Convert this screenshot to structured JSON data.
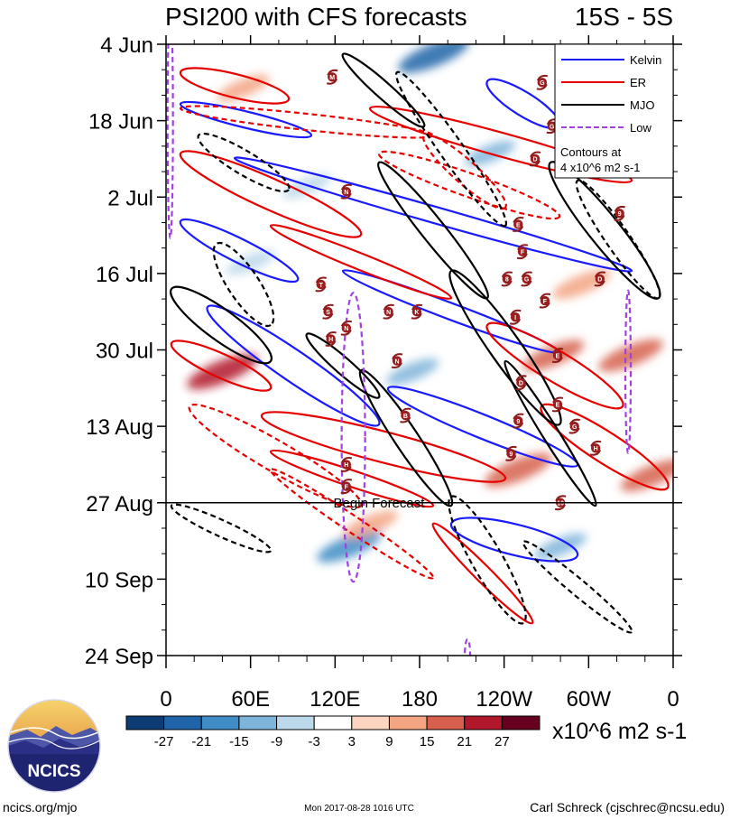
{
  "chart_data": {
    "type": "heatmap",
    "title": "PSI200 with CFS forecasts",
    "region": "15S - 5S",
    "x_ticks": [
      {
        "label": "0",
        "lon": 0
      },
      {
        "label": "60E",
        "lon": 60
      },
      {
        "label": "120E",
        "lon": 120
      },
      {
        "label": "180",
        "lon": 180
      },
      {
        "label": "120W",
        "lon": 240
      },
      {
        "label": "60W",
        "lon": 300
      },
      {
        "label": "0",
        "lon": 360
      }
    ],
    "y_ticks": [
      {
        "label": "4 Jun",
        "day": 0
      },
      {
        "label": "18 Jun",
        "day": 14
      },
      {
        "label": "2 Jul",
        "day": 28
      },
      {
        "label": "16 Jul",
        "day": 42
      },
      {
        "label": "30 Jul",
        "day": 56
      },
      {
        "label": "13 Aug",
        "day": 70
      },
      {
        "label": "27 Aug",
        "day": 84
      },
      {
        "label": "10 Sep",
        "day": 98
      },
      {
        "label": "24 Sep",
        "day": 112
      }
    ],
    "x_range": [
      0,
      360
    ],
    "y_range_days": [
      0,
      112
    ],
    "forecast_start_day": 84,
    "forecast_label": "Begin Forecast",
    "legend": {
      "position": "top-right",
      "entries": [
        {
          "name": "Kelvin",
          "color": "#1a1aff"
        },
        {
          "name": "ER",
          "color": "#e60000"
        },
        {
          "name": "MJO",
          "color": "#000000"
        },
        {
          "name": "Low",
          "color": "#a040e0"
        }
      ],
      "note_lines": [
        "Contours at",
        "4 x10^6 m2 s-1"
      ]
    },
    "colorbar": {
      "labels": [
        "-27",
        "-21",
        "-15",
        "-9",
        "-3",
        "3",
        "9",
        "15",
        "21",
        "27"
      ],
      "colors": [
        "#0d3b74",
        "#1f64a8",
        "#3f8cc6",
        "#7fb4da",
        "#bcd8eb",
        "#ffffff",
        "#fcd5c0",
        "#f3a582",
        "#d6604d",
        "#b2182b",
        "#67001f"
      ],
      "units": "x10^6 m2 s-1"
    },
    "anomalies": [
      {
        "lon": 40,
        "day": 60,
        "value": 22
      },
      {
        "lon": 250,
        "day": 78,
        "value": 20
      },
      {
        "lon": 330,
        "day": 57,
        "value": 18
      },
      {
        "lon": 275,
        "day": 57,
        "value": 16
      },
      {
        "lon": 190,
        "day": 2,
        "value": -22
      },
      {
        "lon": 130,
        "day": 92,
        "value": -18
      },
      {
        "lon": 345,
        "day": 79,
        "value": 17
      },
      {
        "lon": 145,
        "day": 88,
        "value": 12
      },
      {
        "lon": 55,
        "day": 8,
        "value": 10
      },
      {
        "lon": 295,
        "day": 44,
        "value": 14
      },
      {
        "lon": 175,
        "day": 60,
        "value": -10
      },
      {
        "lon": 230,
        "day": 20,
        "value": -9
      },
      {
        "lon": 60,
        "day": 40,
        "value": -8
      },
      {
        "lon": 280,
        "day": 92,
        "value": -10
      },
      {
        "lon": 100,
        "day": 26,
        "value": -8
      }
    ],
    "cyclones": [
      {
        "label": "M",
        "lon": 118,
        "day": 6
      },
      {
        "label": "N",
        "lon": 128,
        "day": 27
      },
      {
        "label": "T",
        "lon": 110,
        "day": 44
      },
      {
        "label": "S",
        "lon": 115,
        "day": 49
      },
      {
        "label": "N",
        "lon": 128,
        "day": 52
      },
      {
        "label": "H",
        "lon": 117,
        "day": 54
      },
      {
        "label": "N",
        "lon": 158,
        "day": 49
      },
      {
        "label": "K",
        "lon": 178,
        "day": 49
      },
      {
        "label": "N",
        "lon": 164,
        "day": 58
      },
      {
        "label": "B",
        "lon": 170,
        "day": 68
      },
      {
        "label": "H",
        "lon": 128,
        "day": 77
      },
      {
        "label": "F",
        "lon": 128,
        "day": 81
      },
      {
        "label": "G",
        "lon": 267,
        "day": 7
      },
      {
        "label": "G",
        "lon": 274,
        "day": 15
      },
      {
        "label": "D",
        "lon": 262,
        "day": 21
      },
      {
        "label": "9",
        "lon": 322,
        "day": 31
      },
      {
        "label": "E",
        "lon": 250,
        "day": 33
      },
      {
        "label": "F",
        "lon": 253,
        "day": 38
      },
      {
        "label": "8",
        "lon": 242,
        "day": 43
      },
      {
        "label": "G",
        "lon": 256,
        "day": 43
      },
      {
        "label": "F",
        "lon": 269,
        "day": 47
      },
      {
        "label": "D",
        "lon": 308,
        "day": 43
      },
      {
        "label": "I",
        "lon": 248,
        "day": 50
      },
      {
        "label": "E",
        "lon": 278,
        "day": 57
      },
      {
        "label": "D",
        "lon": 252,
        "day": 62
      },
      {
        "label": "E",
        "lon": 278,
        "day": 66
      },
      {
        "label": "9",
        "lon": 250,
        "day": 69
      },
      {
        "label": "G",
        "lon": 290,
        "day": 70
      },
      {
        "label": "H",
        "lon": 305,
        "day": 74
      },
      {
        "label": "9",
        "lon": 245,
        "day": 75
      },
      {
        "label": "10",
        "lon": 280,
        "day": 84
      }
    ]
  },
  "footer": {
    "logo_text": "NCICS",
    "left": "ncics.org/mjo",
    "center": "Mon 2017-08-28 1016 UTC",
    "right": "Carl Schreck (cjschrec@ncsu.edu)"
  }
}
